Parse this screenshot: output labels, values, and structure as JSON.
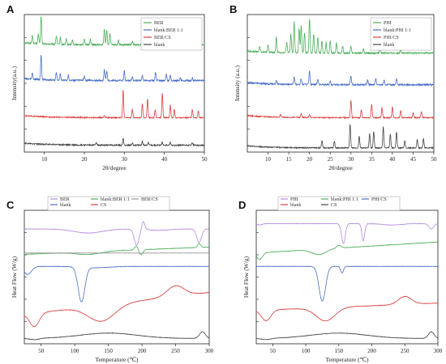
{
  "chart_data": [
    {
      "panel": "A",
      "type": "line",
      "xlabel": "2θ/degree",
      "ylabel": "Intensity(a.u.)",
      "xlim": [
        5,
        50
      ],
      "xticks": [
        10,
        20,
        30,
        40,
        50
      ],
      "legend_position": "top-right",
      "legend_layout": "column",
      "series": [
        {
          "name": "BER",
          "color": "#4daf5a",
          "offset": 0.78,
          "scale": 0.2,
          "amp": 0.012,
          "peaks": [
            [
              7,
              0.3
            ],
            [
              8.5,
              0.35
            ],
            [
              9.2,
              1.0
            ],
            [
              13,
              0.3
            ],
            [
              14,
              0.25
            ],
            [
              15.5,
              0.2
            ],
            [
              17,
              0.18
            ],
            [
              20,
              0.22
            ],
            [
              21.5,
              0.2
            ],
            [
              25,
              0.6
            ],
            [
              25.6,
              0.55
            ],
            [
              26.4,
              0.4
            ],
            [
              28.5,
              0.15
            ],
            [
              32,
              0.12
            ],
            [
              35,
              0.1
            ],
            [
              38,
              0.1
            ],
            [
              42,
              0.08
            ]
          ]
        },
        {
          "name": "blank:BER 1:1",
          "color": "#4a6fc8",
          "offset": 0.52,
          "scale": 0.18,
          "amp": 0.012,
          "peaks": [
            [
              7,
              0.25
            ],
            [
              9.2,
              1.0
            ],
            [
              13,
              0.3
            ],
            [
              14,
              0.25
            ],
            [
              16,
              0.2
            ],
            [
              20,
              0.18
            ],
            [
              25,
              0.45
            ],
            [
              25.6,
              0.4
            ],
            [
              30,
              0.4
            ],
            [
              32,
              0.15
            ],
            [
              34.5,
              0.2
            ],
            [
              37.8,
              0.35
            ],
            [
              40.5,
              0.25
            ],
            [
              41.5,
              0.2
            ],
            [
              44,
              0.12
            ],
            [
              47,
              0.1
            ]
          ]
        },
        {
          "name": "BER/CS",
          "color": "#d94040",
          "offset": 0.25,
          "scale": 0.2,
          "amp": 0.008,
          "peaks": [
            [
              25,
              0.08
            ],
            [
              29.7,
              1.0
            ],
            [
              32,
              0.3
            ],
            [
              34.5,
              0.5
            ],
            [
              35.8,
              0.7
            ],
            [
              37.7,
              0.3
            ],
            [
              39.5,
              0.9
            ],
            [
              41.5,
              0.45
            ],
            [
              42.5,
              0.3
            ],
            [
              47,
              0.3
            ],
            [
              48.5,
              0.25
            ]
          ]
        },
        {
          "name": "blank",
          "color": "#444444",
          "offset": 0.05,
          "scale": 0.08,
          "amp": 0.01,
          "peaks": [
            [
              23,
              0.2
            ],
            [
              29.7,
              0.6
            ],
            [
              32,
              0.2
            ],
            [
              34.5,
              0.35
            ],
            [
              36,
              0.3
            ],
            [
              39.5,
              0.3
            ],
            [
              41.5,
              0.25
            ],
            [
              47,
              0.2
            ]
          ]
        }
      ]
    },
    {
      "panel": "B",
      "type": "line",
      "xlabel": "2θ/degree",
      "ylabel": "Intensity (a.u.)",
      "xlim": [
        5,
        50
      ],
      "xticks": [
        10,
        15,
        20,
        25,
        30,
        35,
        40,
        45,
        50
      ],
      "legend_position": "top-right",
      "legend_layout": "column",
      "series": [
        {
          "name": "PHI",
          "color": "#4daf5a",
          "offset": 0.72,
          "scale": 0.25,
          "amp": 0.012,
          "peaks": [
            [
              8,
              0.15
            ],
            [
              10,
              0.2
            ],
            [
              12,
              0.45
            ],
            [
              14.5,
              0.3
            ],
            [
              15.5,
              0.55
            ],
            [
              16.3,
              0.9
            ],
            [
              17.5,
              0.7
            ],
            [
              18,
              0.8
            ],
            [
              18.8,
              0.6
            ],
            [
              20,
              1.0
            ],
            [
              21,
              0.55
            ],
            [
              22,
              0.45
            ],
            [
              23,
              0.35
            ],
            [
              24,
              0.3
            ],
            [
              25,
              0.35
            ],
            [
              26.5,
              0.3
            ],
            [
              28,
              0.2
            ],
            [
              30,
              0.2
            ],
            [
              33,
              0.12
            ],
            [
              37,
              0.1
            ],
            [
              42,
              0.1
            ]
          ]
        },
        {
          "name": "blank:PHI 1:1",
          "color": "#4a6fc8",
          "offset": 0.49,
          "scale": 0.14,
          "amp": 0.012,
          "peaks": [
            [
              12,
              0.2
            ],
            [
              16.3,
              0.4
            ],
            [
              18,
              0.3
            ],
            [
              20,
              0.7
            ],
            [
              22,
              0.3
            ],
            [
              25,
              0.2
            ],
            [
              30,
              0.45
            ],
            [
              34,
              0.25
            ],
            [
              36,
              0.3
            ],
            [
              38,
              0.25
            ],
            [
              41,
              0.3
            ]
          ]
        },
        {
          "name": "PHI/CS",
          "color": "#d94040",
          "offset": 0.25,
          "scale": 0.18,
          "amp": 0.008,
          "peaks": [
            [
              13,
              0.1
            ],
            [
              18,
              0.15
            ],
            [
              20,
              0.12
            ],
            [
              30,
              0.7
            ],
            [
              32.5,
              0.3
            ],
            [
              35,
              0.55
            ],
            [
              37.5,
              0.4
            ],
            [
              40,
              0.45
            ],
            [
              42,
              0.3
            ],
            [
              45,
              0.2
            ],
            [
              47,
              0.25
            ]
          ]
        },
        {
          "name": "blank",
          "color": "#444444",
          "offset": 0.03,
          "scale": 0.17,
          "amp": 0.008,
          "peaks": [
            [
              23,
              0.3
            ],
            [
              26,
              0.3
            ],
            [
              29.8,
              1.0
            ],
            [
              32,
              0.5
            ],
            [
              34.5,
              0.6
            ],
            [
              35.5,
              0.7
            ],
            [
              37.8,
              0.9
            ],
            [
              39.5,
              0.6
            ],
            [
              41,
              0.7
            ],
            [
              43,
              0.3
            ],
            [
              46,
              0.35
            ],
            [
              47.5,
              0.4
            ]
          ]
        }
      ]
    },
    {
      "panel": "C",
      "type": "line",
      "xlabel": "Temperature (℃)",
      "ylabel": "Heat Flow (W/g)",
      "xlim": [
        25,
        300
      ],
      "xticks": [
        50,
        100,
        150,
        200,
        250,
        300
      ],
      "legend_position": "top",
      "legend_layout": "rows",
      "legend_columns": 3,
      "series": [
        {
          "name": "BER",
          "color": "#b48ae0",
          "offset": 0.86,
          "slope": 0.0,
          "dips": [
            [
              120,
              -0.03,
              30
            ],
            [
              192,
              -0.12,
              5
            ],
            [
              202,
              0.06,
              3
            ],
            [
              225,
              -0.01,
              20
            ],
            [
              285,
              -0.1,
              5
            ]
          ]
        },
        {
          "name": "blank:BER 1:1",
          "color": "#4daf5a",
          "offset": 0.67,
          "slope": 0.0002,
          "dips": [
            [
              120,
              -0.02,
              25
            ],
            [
              192,
              0.03,
              4
            ],
            [
              198,
              -0.04,
              4
            ],
            [
              285,
              0.03,
              3
            ]
          ]
        },
        {
          "name": "BER/CS",
          "color": "#999999",
          "offset": 0.68,
          "slope": 0.0,
          "dips": []
        },
        {
          "name": "blank",
          "color": "#4a6fc8",
          "offset": 0.58,
          "slope": 0.0,
          "dips": [
            [
              30,
              -0.06,
              8
            ],
            [
              110,
              -0.26,
              7
            ],
            [
              130,
              -0.01,
              30
            ]
          ]
        },
        {
          "name": "CS",
          "color": "#d94040",
          "offset": 0.22,
          "slope": 0.0006,
          "dips": [
            [
              40,
              -0.1,
              10
            ],
            [
              140,
              -0.12,
              28
            ],
            [
              250,
              0.08,
              18
            ]
          ]
        },
        {
          "name": "",
          "color": "#444444",
          "offset": 0.04,
          "slope": 0.0,
          "dips": [
            [
              40,
              -0.01,
              10
            ],
            [
              150,
              0.04,
              60
            ],
            [
              290,
              0.05,
              6
            ]
          ]
        }
      ]
    },
    {
      "panel": "D",
      "type": "line",
      "xlabel": "Temperature (℃)",
      "ylabel": "Heat Flow (W/g)",
      "xlim": [
        25,
        300
      ],
      "xticks": [
        50,
        100,
        150,
        200,
        250,
        300
      ],
      "legend_position": "top",
      "legend_layout": "rows",
      "legend_columns": 3,
      "series": [
        {
          "name": "PHI",
          "color": "#b48ae0",
          "offset": 0.9,
          "slope": 0.0,
          "dips": [
            [
              30,
              -0.01,
              5
            ],
            [
              157,
              -0.15,
              4
            ],
            [
              187,
              -0.13,
              3
            ],
            [
              230,
              -0.01,
              20
            ],
            [
              290,
              -0.04,
              5
            ]
          ]
        },
        {
          "name": "blank:PHI 1:1",
          "color": "#4daf5a",
          "offset": 0.68,
          "slope": 0.0003,
          "dips": [
            [
              30,
              -0.05,
              6
            ],
            [
              120,
              -0.04,
              15
            ],
            [
              150,
              0.02,
              5
            ]
          ]
        },
        {
          "name": "PHI/CS",
          "color": "#4a6fc8",
          "offset": 0.58,
          "slope": 0.0,
          "dips": [
            [
              125,
              -0.26,
              7
            ],
            [
              155,
              -0.05,
              3
            ]
          ]
        },
        {
          "name": "blank",
          "color": "#d94040",
          "offset": 0.25,
          "slope": 0.0002,
          "dips": [
            [
              40,
              -0.08,
              10
            ],
            [
              130,
              -0.1,
              20
            ],
            [
              250,
              0.06,
              14
            ]
          ]
        },
        {
          "name": "CS",
          "color": "#444444",
          "offset": 0.04,
          "slope": 0.0,
          "dips": [
            [
              40,
              -0.01,
              10
            ],
            [
              150,
              0.04,
              60
            ],
            [
              290,
              0.05,
              6
            ]
          ]
        }
      ]
    }
  ]
}
